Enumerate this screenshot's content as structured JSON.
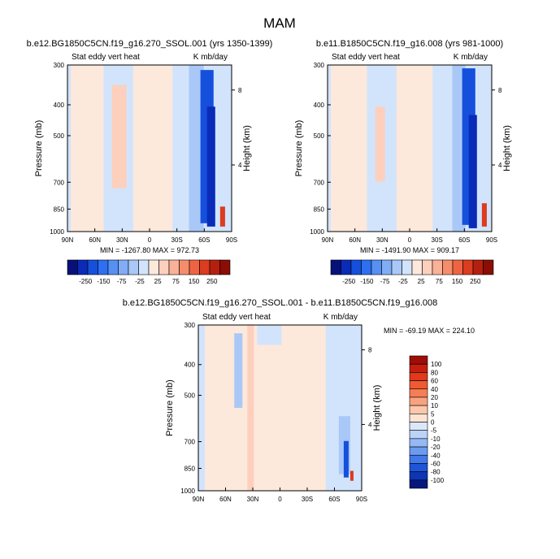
{
  "figure_title": "MAM",
  "chart_data": [
    {
      "type": "heatmap",
      "title": "b.e12.BG1850C5CN.f19_g16.270_SSOL.001 (yrs 1350-1399)",
      "left_label": "Stat eddy vert heat",
      "right_label": "K mb/day",
      "ylabel": "Pressure (mb)",
      "ylabel_right": "Height (km)",
      "x_ticks": [
        "90N",
        "60N",
        "30N",
        "0",
        "30S",
        "60S",
        "90S"
      ],
      "y_ticks": [
        "300",
        "400",
        "500",
        "700",
        "850",
        "1000"
      ],
      "y_ticks_right": [
        "8",
        "4"
      ],
      "stats": "MIN = -1267.80   MAX = 972.73",
      "colorbar": {
        "orientation": "horizontal",
        "labels": [
          "-250",
          "-150",
          "-75",
          "-25",
          "25",
          "75",
          "150",
          "250"
        ],
        "colors": [
          "#08107a",
          "#0a2bb8",
          "#1550dc",
          "#2d6ff0",
          "#5690f2",
          "#80adf5",
          "#a9c8f7",
          "#d2e4fb",
          "#fde8dc",
          "#fdd0bd",
          "#fab197",
          "#f58d6d",
          "#ee6443",
          "#dc3c1f",
          "#b5200e",
          "#8a0d06"
        ]
      }
    },
    {
      "type": "heatmap",
      "title": "b.e11.B1850C5CN.f19_g16.008 (yrs 981-1000)",
      "left_label": "Stat eddy vert heat",
      "right_label": "K mb/day",
      "ylabel": "Pressure (mb)",
      "ylabel_right": "Height (km)",
      "x_ticks": [
        "90N",
        "60N",
        "30N",
        "0",
        "30S",
        "60S",
        "90S"
      ],
      "y_ticks": [
        "300",
        "400",
        "500",
        "700",
        "850",
        "1000"
      ],
      "y_ticks_right": [
        "8",
        "4"
      ],
      "stats": "MIN = -1491.90   MAX = 909.17",
      "colorbar": {
        "orientation": "horizontal",
        "labels": [
          "-250",
          "-150",
          "-75",
          "-25",
          "25",
          "75",
          "150",
          "250"
        ],
        "colors": [
          "#08107a",
          "#0a2bb8",
          "#1550dc",
          "#2d6ff0",
          "#5690f2",
          "#80adf5",
          "#a9c8f7",
          "#d2e4fb",
          "#fde8dc",
          "#fdd0bd",
          "#fab197",
          "#f58d6d",
          "#ee6443",
          "#dc3c1f",
          "#b5200e",
          "#8a0d06"
        ]
      }
    },
    {
      "type": "heatmap",
      "title": "b.e12.BG1850C5CN.f19_g16.270_SSOL.001 - b.e11.B1850C5CN.f19_g16.008",
      "left_label": "Stat eddy vert heat",
      "right_label": "K mb/day",
      "ylabel": "Pressure (mb)",
      "ylabel_right": "Height (km)",
      "x_ticks": [
        "90N",
        "60N",
        "30N",
        "0",
        "30S",
        "60S",
        "90S"
      ],
      "y_ticks": [
        "300",
        "400",
        "500",
        "700",
        "850",
        "1000"
      ],
      "y_ticks_right": [
        "8",
        "4"
      ],
      "stats": "MIN = -69.19   MAX = 224.10",
      "colorbar": {
        "orientation": "vertical",
        "labels": [
          "100",
          "80",
          "60",
          "40",
          "20",
          "10",
          "5",
          "0",
          "-5",
          "-10",
          "-20",
          "-40",
          "-60",
          "-80",
          "-100"
        ],
        "colors": [
          "#a00d08",
          "#c41f0e",
          "#e0391c",
          "#f05a33",
          "#f67e55",
          "#f9a27f",
          "#fcc7aa",
          "#fde3d2",
          "#dbe8fb",
          "#bcd3f8",
          "#95b9f5",
          "#6d9bf1",
          "#4179eb",
          "#1f55d8",
          "#0c36b4",
          "#06167e"
        ]
      }
    }
  ]
}
